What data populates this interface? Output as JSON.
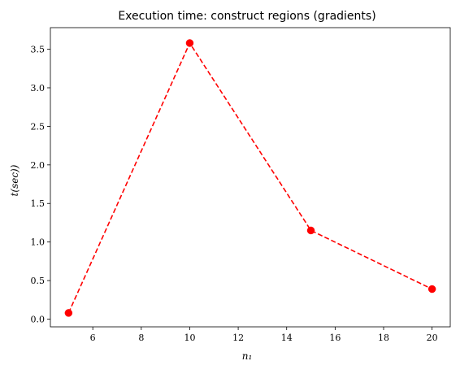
{
  "chart_data": {
    "type": "line",
    "title": "Execution time: construct regions (gradients)",
    "xlabel": "n₁",
    "ylabel": "t(sec))",
    "xlim": [
      4.25,
      20.75
    ],
    "ylim": [
      -0.1,
      3.78
    ],
    "xticks": [
      6,
      8,
      10,
      12,
      14,
      16,
      18,
      20
    ],
    "yticks": [
      0.0,
      0.5,
      1.0,
      1.5,
      2.0,
      2.5,
      3.0,
      3.5
    ],
    "ytick_labels": [
      "0.0",
      "0.5",
      "1.0",
      "1.5",
      "2.0",
      "2.5",
      "3.0",
      "3.5"
    ],
    "grid": false,
    "series": [
      {
        "x": [
          5,
          10,
          15,
          20
        ],
        "y": [
          0.08,
          3.58,
          1.15,
          0.39
        ],
        "color": "#ff0000",
        "line_style": "dashed",
        "marker": "circle"
      }
    ]
  }
}
